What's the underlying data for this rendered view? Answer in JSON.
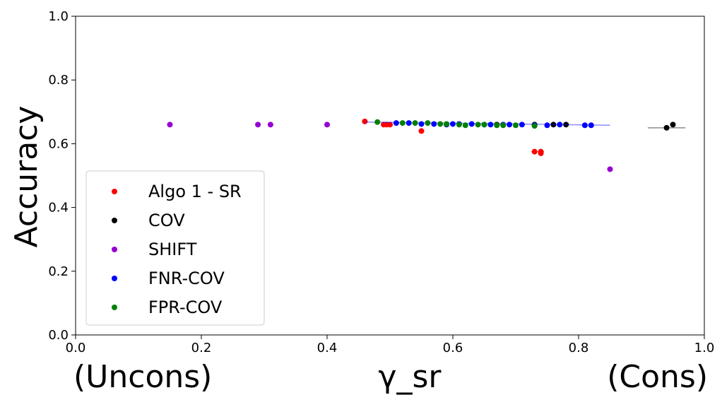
{
  "chart_data": {
    "type": "scatter",
    "title": "",
    "ylabel": "Accuracy",
    "xlabel_left": "(Uncons)",
    "xlabel_center": "γ_sr",
    "xlabel_right": "(Cons)",
    "xlim": [
      0.0,
      1.0
    ],
    "ylim": [
      0.0,
      1.0
    ],
    "xticks": [
      "0.0",
      "0.2",
      "0.4",
      "0.6",
      "0.8",
      "1.0"
    ],
    "yticks": [
      "0.0",
      "0.2",
      "0.4",
      "0.6",
      "0.8",
      "1.0"
    ],
    "grid": false,
    "legend_position": "lower-left",
    "series": [
      {
        "name": "Algo 1 - SR",
        "color": "#ff0000",
        "points": [
          [
            0.46,
            0.67
          ],
          [
            0.49,
            0.66
          ],
          [
            0.495,
            0.66
          ],
          [
            0.5,
            0.66
          ],
          [
            0.55,
            0.64
          ],
          [
            0.73,
            0.575
          ],
          [
            0.74,
            0.575
          ],
          [
            0.74,
            0.57
          ]
        ],
        "error_segments": [
          [
            0.725,
            0.575,
            0.745,
            0.575
          ]
        ]
      },
      {
        "name": "COV",
        "color": "#000000",
        "points": [
          [
            0.67,
            0.66
          ],
          [
            0.73,
            0.66
          ],
          [
            0.76,
            0.66
          ],
          [
            0.78,
            0.66
          ],
          [
            0.94,
            0.65
          ],
          [
            0.95,
            0.66
          ]
        ],
        "error_segments": [
          [
            0.91,
            0.65,
            0.97,
            0.65
          ]
        ]
      },
      {
        "name": "SHIFT",
        "color": "#9400d3",
        "points": [
          [
            0.15,
            0.66
          ],
          [
            0.29,
            0.66
          ],
          [
            0.31,
            0.66
          ],
          [
            0.4,
            0.66
          ],
          [
            0.85,
            0.52
          ]
        ],
        "error_segments": []
      },
      {
        "name": "FNR-COV",
        "color": "#0000ff",
        "points": [
          [
            0.51,
            0.665
          ],
          [
            0.53,
            0.665
          ],
          [
            0.55,
            0.662
          ],
          [
            0.57,
            0.662
          ],
          [
            0.59,
            0.66
          ],
          [
            0.6,
            0.662
          ],
          [
            0.61,
            0.662
          ],
          [
            0.63,
            0.662
          ],
          [
            0.65,
            0.66
          ],
          [
            0.66,
            0.66
          ],
          [
            0.68,
            0.66
          ],
          [
            0.69,
            0.66
          ],
          [
            0.71,
            0.66
          ],
          [
            0.73,
            0.658
          ],
          [
            0.75,
            0.658
          ],
          [
            0.77,
            0.66
          ],
          [
            0.81,
            0.658
          ],
          [
            0.82,
            0.658
          ]
        ],
        "error_segments": [
          [
            0.46,
            0.668,
            0.85,
            0.658
          ]
        ]
      },
      {
        "name": "FPR-COV",
        "color": "#008000",
        "points": [
          [
            0.48,
            0.668
          ],
          [
            0.52,
            0.665
          ],
          [
            0.54,
            0.665
          ],
          [
            0.56,
            0.665
          ],
          [
            0.58,
            0.662
          ],
          [
            0.59,
            0.662
          ],
          [
            0.61,
            0.66
          ],
          [
            0.62,
            0.658
          ],
          [
            0.64,
            0.66
          ],
          [
            0.65,
            0.66
          ],
          [
            0.67,
            0.658
          ],
          [
            0.68,
            0.658
          ],
          [
            0.7,
            0.658
          ],
          [
            0.73,
            0.656
          ]
        ],
        "error_segments": []
      }
    ]
  }
}
